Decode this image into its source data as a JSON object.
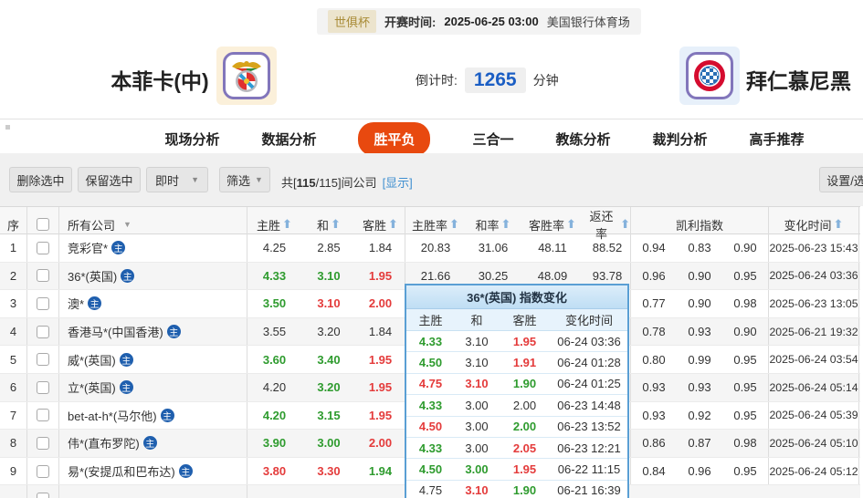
{
  "match": {
    "league_badge": "世俱杯",
    "kickoff_label": "开赛时间:",
    "kickoff_time": "2025-06-25 03:00",
    "venue": "美国银行体育场",
    "home_team": "本菲卡(中)",
    "away_team": "拜仁慕尼黑",
    "countdown_label": "倒计时:",
    "countdown_value": "1265",
    "countdown_unit": "分钟"
  },
  "nav": {
    "tabs": [
      {
        "label": "现场分析",
        "active": false
      },
      {
        "label": "数据分析",
        "active": false
      },
      {
        "label": "胜平负",
        "active": true
      },
      {
        "label": "三合一",
        "active": false
      },
      {
        "label": "教练分析",
        "active": false
      },
      {
        "label": "裁判分析",
        "active": false
      },
      {
        "label": "高手推荐",
        "active": false
      }
    ]
  },
  "toolbar": {
    "delete_button": "删除选中",
    "keep_button": "保留选中",
    "instant_dropdown": "即时",
    "filter_dropdown": "筛选",
    "count_prefix": "共[",
    "count_bold": "115",
    "count_suffix": "/115]间公司",
    "show_link": "[显示]",
    "settings_button": "设置/选择"
  },
  "table": {
    "headers": {
      "no": "序",
      "company": "所有公司",
      "home": "主胜",
      "draw": "和",
      "away": "客胜",
      "home_rate": "主胜率",
      "draw_rate": "和率",
      "away_rate": "客胜率",
      "return_rate": "返还率",
      "kelly": "凯利指数",
      "change_time": "变化时间"
    },
    "rows": [
      {
        "no": "1",
        "company": "竞彩官*",
        "badge": "主",
        "odds": [
          {
            "v": "4.25",
            "c": ""
          },
          {
            "v": "2.85",
            "c": ""
          },
          {
            "v": "1.84",
            "c": ""
          }
        ],
        "rates": [
          "20.83",
          "31.06",
          "48.11",
          "88.52"
        ],
        "kelly": [
          "0.94",
          "0.83",
          "0.90"
        ],
        "time": "2025-06-23 15:43"
      },
      {
        "no": "2",
        "company": "36*(英国)",
        "badge": "主",
        "odds": [
          {
            "v": "4.33",
            "c": "green"
          },
          {
            "v": "3.10",
            "c": "green"
          },
          {
            "v": "1.95",
            "c": "red"
          }
        ],
        "rates": [
          "21.66",
          "30.25",
          "48.09",
          "93.78"
        ],
        "kelly": [
          "0.96",
          "0.90",
          "0.95"
        ],
        "time": "2025-06-24 03:36"
      },
      {
        "no": "3",
        "company": "澳*",
        "badge": "主",
        "odds": [
          {
            "v": "3.50",
            "c": "green"
          },
          {
            "v": "3.10",
            "c": "red"
          },
          {
            "v": "2.00",
            "c": "red"
          }
        ],
        "rates": [
          "",
          "",
          "",
          ""
        ],
        "kelly": [
          "0.77",
          "0.90",
          "0.98"
        ],
        "time": "2025-06-23 13:05"
      },
      {
        "no": "4",
        "company": "香港马*(中国香港)",
        "badge": "主",
        "odds": [
          {
            "v": "3.55",
            "c": ""
          },
          {
            "v": "3.20",
            "c": ""
          },
          {
            "v": "1.84",
            "c": ""
          }
        ],
        "rates": [
          "",
          "",
          "",
          ""
        ],
        "kelly": [
          "0.78",
          "0.93",
          "0.90"
        ],
        "time": "2025-06-21 19:32"
      },
      {
        "no": "5",
        "company": "威*(英国)",
        "badge": "主",
        "odds": [
          {
            "v": "3.60",
            "c": "green"
          },
          {
            "v": "3.40",
            "c": "green"
          },
          {
            "v": "1.95",
            "c": "red"
          }
        ],
        "rates": [
          "",
          "",
          "",
          ""
        ],
        "kelly": [
          "0.80",
          "0.99",
          "0.95"
        ],
        "time": "2025-06-24 03:54"
      },
      {
        "no": "6",
        "company": "立*(英国)",
        "badge": "主",
        "odds": [
          {
            "v": "4.20",
            "c": ""
          },
          {
            "v": "3.20",
            "c": "green"
          },
          {
            "v": "1.95",
            "c": "red"
          }
        ],
        "rates": [
          "",
          "",
          "",
          ""
        ],
        "kelly": [
          "0.93",
          "0.93",
          "0.95"
        ],
        "time": "2025-06-24 05:14"
      },
      {
        "no": "7",
        "company": "bet-at-h*(马尔他)",
        "badge": "主",
        "odds": [
          {
            "v": "4.20",
            "c": "green"
          },
          {
            "v": "3.15",
            "c": "green"
          },
          {
            "v": "1.95",
            "c": "red"
          }
        ],
        "rates": [
          "",
          "",
          "",
          ""
        ],
        "kelly": [
          "0.93",
          "0.92",
          "0.95"
        ],
        "time": "2025-06-24 05:39"
      },
      {
        "no": "8",
        "company": "伟*(直布罗陀)",
        "badge": "主",
        "odds": [
          {
            "v": "3.90",
            "c": "green"
          },
          {
            "v": "3.00",
            "c": "green"
          },
          {
            "v": "2.00",
            "c": "red"
          }
        ],
        "rates": [
          "",
          "",
          "",
          ""
        ],
        "kelly": [
          "0.86",
          "0.87",
          "0.98"
        ],
        "time": "2025-06-24 05:10"
      },
      {
        "no": "9",
        "company": "易*(安提瓜和巴布达)",
        "badge": "主",
        "odds": [
          {
            "v": "3.80",
            "c": "red"
          },
          {
            "v": "3.30",
            "c": "red"
          },
          {
            "v": "1.94",
            "c": "green"
          }
        ],
        "rates": [
          "",
          "",
          "",
          ""
        ],
        "kelly": [
          "0.84",
          "0.96",
          "0.95"
        ],
        "time": "2025-06-24 05:12"
      }
    ]
  },
  "popup": {
    "title": "36*(英国) 指数变化",
    "headers": [
      "主胜",
      "和",
      "客胜",
      "变化时间"
    ],
    "rows": [
      {
        "home": {
          "v": "4.33",
          "c": "green"
        },
        "draw": {
          "v": "3.10",
          "c": ""
        },
        "away": {
          "v": "1.95",
          "c": "red"
        },
        "time": "06-24 03:36"
      },
      {
        "home": {
          "v": "4.50",
          "c": "green"
        },
        "draw": {
          "v": "3.10",
          "c": ""
        },
        "away": {
          "v": "1.91",
          "c": "red"
        },
        "time": "06-24 01:28"
      },
      {
        "home": {
          "v": "4.75",
          "c": "red"
        },
        "draw": {
          "v": "3.10",
          "c": "red"
        },
        "away": {
          "v": "1.90",
          "c": "green"
        },
        "time": "06-24 01:25"
      },
      {
        "home": {
          "v": "4.33",
          "c": "green"
        },
        "draw": {
          "v": "3.00",
          "c": ""
        },
        "away": {
          "v": "2.00",
          "c": ""
        },
        "time": "06-23 14:48"
      },
      {
        "home": {
          "v": "4.50",
          "c": "red"
        },
        "draw": {
          "v": "3.00",
          "c": ""
        },
        "away": {
          "v": "2.00",
          "c": "green"
        },
        "time": "06-23 13:52"
      },
      {
        "home": {
          "v": "4.33",
          "c": "green"
        },
        "draw": {
          "v": "3.00",
          "c": ""
        },
        "away": {
          "v": "2.05",
          "c": "red"
        },
        "time": "06-23 12:21"
      },
      {
        "home": {
          "v": "4.50",
          "c": "green"
        },
        "draw": {
          "v": "3.00",
          "c": "green"
        },
        "away": {
          "v": "1.95",
          "c": "red"
        },
        "time": "06-22 11:15"
      },
      {
        "home": {
          "v": "4.75",
          "c": ""
        },
        "draw": {
          "v": "3.10",
          "c": "red"
        },
        "away": {
          "v": "1.90",
          "c": "green"
        },
        "time": "06-21 16:39"
      }
    ]
  },
  "colors": {
    "accent_orange": "#e8490f",
    "odds_green": "#2e9b2e",
    "odds_red": "#e43b3b",
    "countdown_blue": "#1b5ec4",
    "link_blue": "#3f8fd0",
    "badge_blue": "#1f5fae",
    "league_gold": "#a98c38"
  }
}
